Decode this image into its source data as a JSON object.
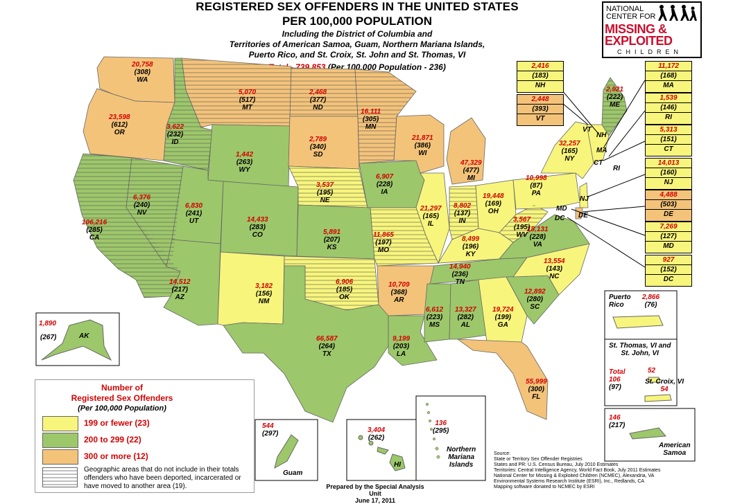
{
  "title": {
    "line1": "REGISTERED SEX OFFENDERS IN THE UNITED STATES",
    "line2": "PER 100,000 POPULATION",
    "subtitle1": "Including the District of Columbia and",
    "subtitle2": "Territories of American Samoa, Guam, Northern Mariana Islands,",
    "subtitle3": "Puerto Rico, and St. Croix, St. John and St. Thomas, VI",
    "total_label": "Total - 739,853",
    "total_rate": "(Per 100,000 Population - 236)"
  },
  "logo": {
    "line1": "NATIONAL",
    "line2": "CENTER FOR",
    "missing": "MISSING &",
    "exploited": "EXPLOITED",
    "children": "CHILDREN"
  },
  "colors": {
    "low": "#f7f57c",
    "mid": "#9dc76b",
    "high": "#f3c37a",
    "count": "#d40000"
  },
  "states": [
    {
      "ab": "WA",
      "count": "20,758",
      "rate": "(308)"
    },
    {
      "ab": "OR",
      "count": "23,598",
      "rate": "(612)"
    },
    {
      "ab": "CA",
      "count": "106,216",
      "rate": "(285)"
    },
    {
      "ab": "NV",
      "count": "6,376",
      "rate": "(240)"
    },
    {
      "ab": "ID",
      "count": "3,622",
      "rate": "(232)"
    },
    {
      "ab": "MT",
      "count": "5,070",
      "rate": "(517)"
    },
    {
      "ab": "WY",
      "count": "1,442",
      "rate": "(263)"
    },
    {
      "ab": "UT",
      "count": "6,830",
      "rate": "(241)"
    },
    {
      "ab": "AZ",
      "count": "14,512",
      "rate": "(217)"
    },
    {
      "ab": "CO",
      "count": "14,433",
      "rate": "(283)"
    },
    {
      "ab": "NM",
      "count": "3,182",
      "rate": "(156)"
    },
    {
      "ab": "ND",
      "count": "2,468",
      "rate": "(377)"
    },
    {
      "ab": "SD",
      "count": "2,789",
      "rate": "(340)"
    },
    {
      "ab": "NE",
      "count": "3,537",
      "rate": "(195)"
    },
    {
      "ab": "KS",
      "count": "5,891",
      "rate": "(207)"
    },
    {
      "ab": "OK",
      "count": "6,906",
      "rate": "(185)"
    },
    {
      "ab": "TX",
      "count": "66,587",
      "rate": "(264)"
    },
    {
      "ab": "MN",
      "count": "16,111",
      "rate": "(305)"
    },
    {
      "ab": "IA",
      "count": "6,907",
      "rate": "(228)"
    },
    {
      "ab": "MO",
      "count": "11,865",
      "rate": "(197)"
    },
    {
      "ab": "AR",
      "count": "10,709",
      "rate": "(368)"
    },
    {
      "ab": "LA",
      "count": "9,199",
      "rate": "(203)"
    },
    {
      "ab": "WI",
      "count": "21,871",
      "rate": "(386)"
    },
    {
      "ab": "IL",
      "count": "21,297",
      "rate": "(165)"
    },
    {
      "ab": "MI",
      "count": "47,329",
      "rate": "(477)"
    },
    {
      "ab": "IN",
      "count": "8,802",
      "rate": "(137)"
    },
    {
      "ab": "OH",
      "count": "19,448",
      "rate": "(169)"
    },
    {
      "ab": "KY",
      "count": "8,499",
      "rate": "(196)"
    },
    {
      "ab": "TN",
      "count": "14,940",
      "rate": "(236)"
    },
    {
      "ab": "MS",
      "count": "6,612",
      "rate": "(223)"
    },
    {
      "ab": "AL",
      "count": "13,327",
      "rate": "(282)"
    },
    {
      "ab": "GA",
      "count": "19,724",
      "rate": "(199)"
    },
    {
      "ab": "FL",
      "count": "55,999",
      "rate": "(300)"
    },
    {
      "ab": "SC",
      "count": "12,892",
      "rate": "(280)"
    },
    {
      "ab": "NC",
      "count": "13,554",
      "rate": "(143)"
    },
    {
      "ab": "VA",
      "count": "18,131",
      "rate": "(228)"
    },
    {
      "ab": "WV",
      "count": "3,567",
      "rate": "(195)"
    },
    {
      "ab": "PA",
      "count": "10,998",
      "rate": "(87)"
    },
    {
      "ab": "NY",
      "count": "32,257",
      "rate": "(165)"
    },
    {
      "ab": "ME",
      "count": "2,921",
      "rate": "(222)"
    }
  ],
  "callouts": [
    {
      "ab": "NH",
      "count": "2,416",
      "rate": "(183)"
    },
    {
      "ab": "VT",
      "count": "2,448",
      "rate": "(393)"
    },
    {
      "ab": "MA",
      "count": "11,172",
      "rate": "(168)"
    },
    {
      "ab": "RI",
      "count": "1,539",
      "rate": "(146)"
    },
    {
      "ab": "CT",
      "count": "5,313",
      "rate": "(151)"
    },
    {
      "ab": "NJ",
      "count": "14,013",
      "rate": "(160)"
    },
    {
      "ab": "DE",
      "count": "4,488",
      "rate": "(503)"
    },
    {
      "ab": "MD",
      "count": "7,269",
      "rate": "(127)"
    },
    {
      "ab": "DC",
      "count": "927",
      "rate": "(152)"
    }
  ],
  "map_labels": {
    "vt": "VT",
    "nh": "NH",
    "ma": "MA",
    "ct": "CT",
    "ri": "RI",
    "nj": "NJ",
    "md": "MD",
    "de": "DE",
    "dc": "DC"
  },
  "territories": {
    "ak": {
      "ab": "AK",
      "count": "1,890",
      "rate": "(267)"
    },
    "hi": {
      "ab": "HI",
      "count": "3,404",
      "rate": "(262)"
    },
    "guam": {
      "name": "Guam",
      "count": "544",
      "rate": "(297)"
    },
    "nmi": {
      "name1": "Northern",
      "name2": "Mariana",
      "name3": "Islands",
      "count": "136",
      "rate": "(295)"
    },
    "pr": {
      "name1": "Puerto",
      "name2": "Rico",
      "count": "2,866",
      "rate": "(76)"
    },
    "vi": {
      "name1": "St. Thomas, VI and",
      "name2": "St. John, VI",
      "sj_count": "52",
      "total_label": "Total",
      "total_count": "106",
      "total_rate": "(97)",
      "croix": "St. Croix, VI",
      "croix_count": "54"
    },
    "samoa": {
      "name1": "American",
      "name2": "Samoa",
      "count": "146",
      "rate": "(217)"
    }
  },
  "legend": {
    "title1": "Number of",
    "title2": "Registered Sex Offenders",
    "title3": "(Per 100,000 Population)",
    "low": "199 or fewer (23)",
    "mid": "200 to 299 (22)",
    "high": "300 or more (12)",
    "note": "Geographic areas that do not include in their totals offenders who have been deported, incarcerated or have moved to another area (19)."
  },
  "footer": {
    "prepared": "Prepared by the Special Analysis Unit",
    "date": "June 17, 2011"
  },
  "source": {
    "l1": "Source:",
    "l2": "State or Territory Sex Offender Registries",
    "l3": "States and PR: U.S. Census Bureau, July 2010 Estimates",
    "l4": "Territories: Central Intelligence Agency, World Fact Book, July 2011 Estimates",
    "l5": "National Center for Missing & Exploited Children (NCMEC), Alexandria, VA",
    "l6": "Environmental Systems Research Institute (ESRI), Inc., Redlands, CA",
    "l7": "Mapping software donated to NCMEC by ESRI"
  }
}
